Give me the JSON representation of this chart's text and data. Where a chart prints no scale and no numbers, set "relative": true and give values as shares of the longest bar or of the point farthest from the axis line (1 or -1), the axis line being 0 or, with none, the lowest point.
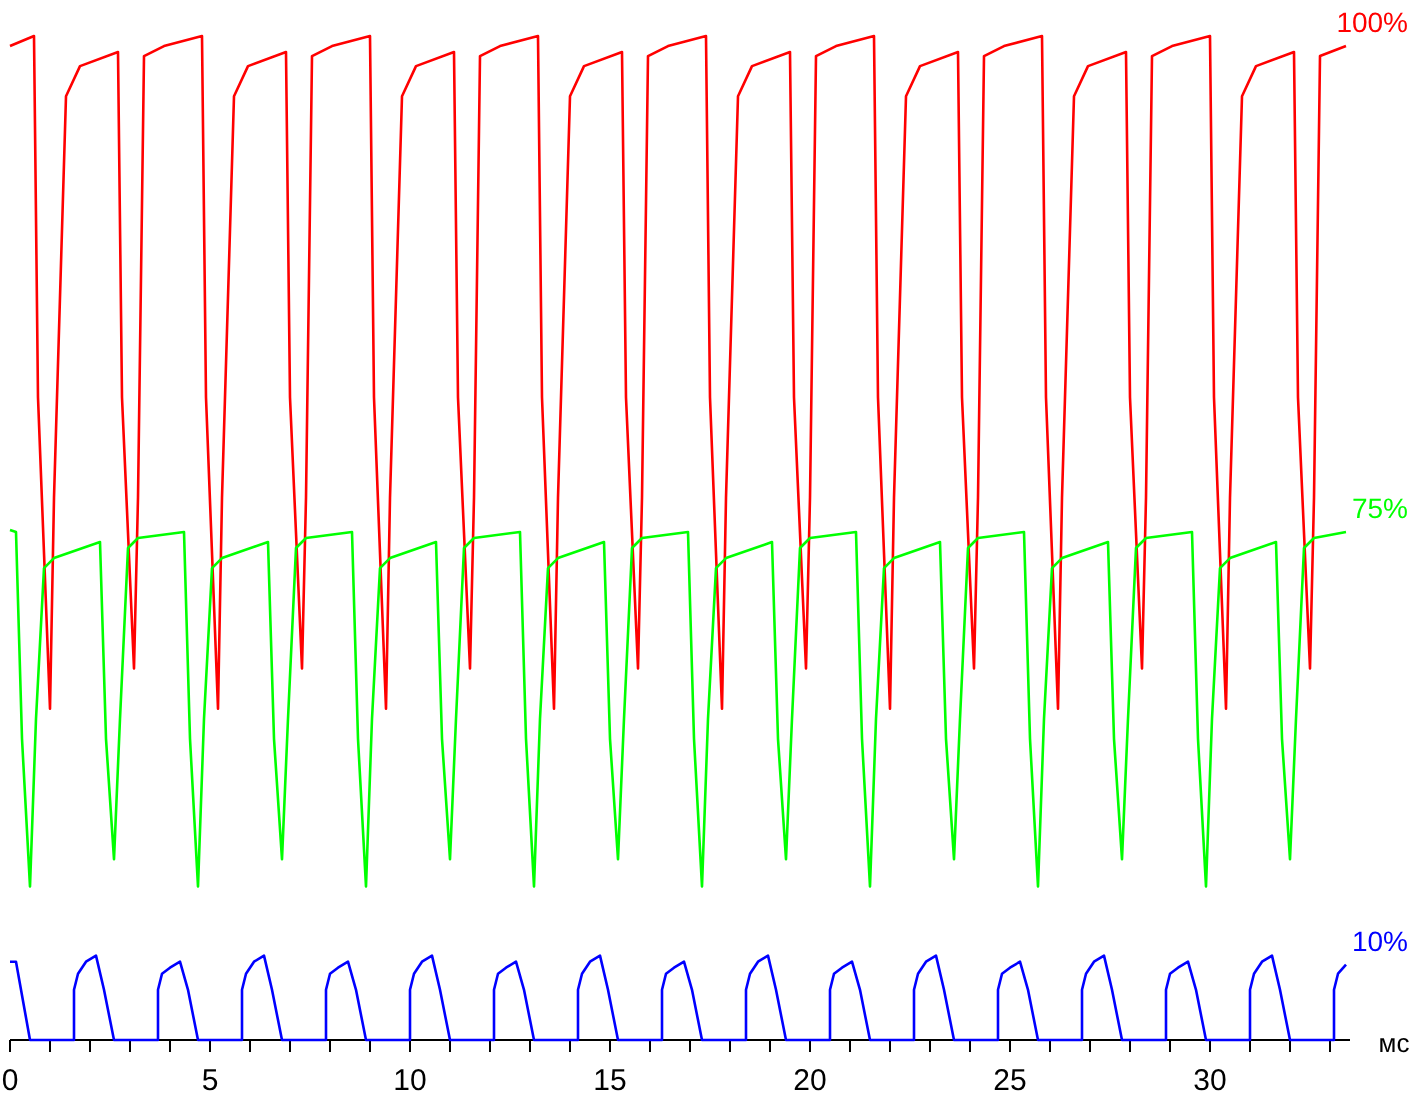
{
  "chart_data": {
    "type": "line",
    "relative": true,
    "xlabel": "мс",
    "xlim": [
      0,
      33.5
    ],
    "xticks": [
      0,
      {
        "value": 1,
        "label": null
      },
      {
        "value": 2,
        "label": null
      },
      {
        "value": 3,
        "label": null
      },
      {
        "value": 4,
        "label": null
      },
      5,
      {
        "value": 6,
        "label": null
      },
      {
        "value": 7,
        "label": null
      },
      {
        "value": 8,
        "label": null
      },
      {
        "value": 9,
        "label": null
      },
      10,
      {
        "value": 11,
        "label": null
      },
      {
        "value": 12,
        "label": null
      },
      {
        "value": 13,
        "label": null
      },
      {
        "value": 14,
        "label": null
      },
      15,
      {
        "value": 16,
        "label": null
      },
      {
        "value": 17,
        "label": null
      },
      {
        "value": 18,
        "label": null
      },
      {
        "value": 19,
        "label": null
      },
      20,
      {
        "value": 21,
        "label": null
      },
      {
        "value": 22,
        "label": null
      },
      {
        "value": 23,
        "label": null
      },
      {
        "value": 24,
        "label": null
      },
      25,
      {
        "value": 26,
        "label": null
      },
      {
        "value": 27,
        "label": null
      },
      {
        "value": 28,
        "label": null
      },
      {
        "value": 29,
        "label": null
      },
      30,
      {
        "value": 31,
        "label": null
      },
      {
        "value": 32,
        "label": null
      },
      {
        "value": 33,
        "label": null
      }
    ],
    "grid": false,
    "marker": "none",
    "line_style": "solid",
    "series": [
      {
        "name": "100%",
        "color": "#ff0000",
        "x": [
          0,
          0.6,
          0.7,
          1.0,
          1.1,
          1.4,
          1.75,
          2.7,
          2.8,
          3.1,
          3.2,
          3.35,
          3.85,
          4.8,
          4.9,
          5.2,
          5.3,
          5.6,
          5.95,
          6.9,
          7.0,
          7.3,
          7.4,
          7.55,
          8.05,
          9.0,
          9.1,
          9.4,
          9.5,
          9.8,
          10.15,
          11.1,
          11.2,
          11.5,
          11.6,
          11.75,
          12.25,
          13.2,
          13.3,
          13.6,
          13.7,
          14.0,
          14.35,
          15.3,
          15.4,
          15.7,
          15.8,
          15.95,
          16.45,
          17.4,
          17.5,
          17.8,
          17.9,
          18.2,
          18.55,
          19.5,
          19.6,
          19.9,
          20.0,
          20.15,
          20.65,
          21.6,
          21.7,
          22.0,
          22.1,
          22.4,
          22.75,
          23.7,
          23.8,
          24.1,
          24.2,
          24.35,
          24.85,
          25.8,
          25.9,
          26.2,
          26.3,
          26.6,
          26.95,
          27.9,
          28.0,
          28.3,
          28.4,
          28.55,
          29.05,
          30.0,
          30.1,
          30.4,
          30.5,
          30.8,
          31.15,
          32.1,
          32.2,
          32.5,
          32.6,
          32.75,
          33.4
        ],
        "values": [
          0.99,
          1.0,
          0.64,
          0.33,
          0.54,
          0.94,
          0.97,
          0.984,
          0.64,
          0.37,
          0.54,
          0.98,
          0.99,
          1.0,
          0.64,
          0.33,
          0.54,
          0.94,
          0.97,
          0.984,
          0.64,
          0.37,
          0.54,
          0.98,
          0.99,
          1.0,
          0.64,
          0.33,
          0.54,
          0.94,
          0.97,
          0.984,
          0.64,
          0.37,
          0.54,
          0.98,
          0.99,
          1.0,
          0.64,
          0.33,
          0.54,
          0.94,
          0.97,
          0.984,
          0.64,
          0.37,
          0.54,
          0.98,
          0.99,
          1.0,
          0.64,
          0.33,
          0.54,
          0.94,
          0.97,
          0.984,
          0.64,
          0.37,
          0.54,
          0.98,
          0.99,
          1.0,
          0.64,
          0.33,
          0.54,
          0.94,
          0.97,
          0.984,
          0.64,
          0.37,
          0.54,
          0.98,
          0.99,
          1.0,
          0.64,
          0.33,
          0.54,
          0.94,
          0.97,
          0.984,
          0.64,
          0.37,
          0.54,
          0.98,
          0.99,
          1.0,
          0.64,
          0.33,
          0.54,
          0.94,
          0.97,
          0.984,
          0.64,
          0.37,
          0.54,
          0.98,
          0.99
        ]
      },
      {
        "name": "75%",
        "color": "#00ff00",
        "x": [
          0,
          0.15,
          0.3,
          0.5,
          0.65,
          0.85,
          1.1,
          2.25,
          2.4,
          2.6,
          2.75,
          2.95,
          3.2,
          4.35,
          4.5,
          4.7,
          4.85,
          5.05,
          5.3,
          6.45,
          6.6,
          6.8,
          6.95,
          7.15,
          7.4,
          8.55,
          8.7,
          8.9,
          9.05,
          9.25,
          9.5,
          10.65,
          10.8,
          11.0,
          11.15,
          11.35,
          11.6,
          12.75,
          12.9,
          13.1,
          13.25,
          13.45,
          13.7,
          14.85,
          15.0,
          15.2,
          15.35,
          15.55,
          15.8,
          16.95,
          17.1,
          17.3,
          17.45,
          17.65,
          17.9,
          19.05,
          19.2,
          19.4,
          19.55,
          19.75,
          20.0,
          21.15,
          21.3,
          21.5,
          21.65,
          21.85,
          22.1,
          23.25,
          23.4,
          23.6,
          23.75,
          23.95,
          24.2,
          25.35,
          25.5,
          25.7,
          25.85,
          26.05,
          26.3,
          27.45,
          27.6,
          27.8,
          27.95,
          28.15,
          28.4,
          29.55,
          29.7,
          29.9,
          30.05,
          30.25,
          30.5,
          31.65,
          31.8,
          32.0,
          32.15,
          32.35,
          32.6,
          33.4
        ],
        "values": [
          0.508,
          0.506,
          0.3,
          0.153,
          0.32,
          0.47,
          0.48,
          0.496,
          0.3,
          0.18,
          0.32,
          0.49,
          0.5,
          0.506,
          0.3,
          0.153,
          0.32,
          0.47,
          0.48,
          0.496,
          0.3,
          0.18,
          0.32,
          0.49,
          0.5,
          0.506,
          0.3,
          0.153,
          0.32,
          0.47,
          0.48,
          0.496,
          0.3,
          0.18,
          0.32,
          0.49,
          0.5,
          0.506,
          0.3,
          0.153,
          0.32,
          0.47,
          0.48,
          0.496,
          0.3,
          0.18,
          0.32,
          0.49,
          0.5,
          0.506,
          0.3,
          0.153,
          0.32,
          0.47,
          0.48,
          0.496,
          0.3,
          0.18,
          0.32,
          0.49,
          0.5,
          0.506,
          0.3,
          0.153,
          0.32,
          0.47,
          0.48,
          0.496,
          0.3,
          0.18,
          0.32,
          0.49,
          0.5,
          0.506,
          0.3,
          0.153,
          0.32,
          0.47,
          0.48,
          0.496,
          0.3,
          0.18,
          0.32,
          0.49,
          0.5,
          0.506,
          0.3,
          0.153,
          0.32,
          0.47,
          0.48,
          0.496,
          0.3,
          0.18,
          0.32,
          0.49,
          0.5,
          0.506
        ]
      },
      {
        "name": "10%",
        "color": "#0000ff",
        "x": [
          0,
          0.15,
          0.5,
          1.6,
          1.6,
          1.7,
          1.9,
          2.15,
          2.35,
          2.6,
          3.7,
          3.7,
          3.8,
          4.0,
          4.25,
          4.45,
          4.7,
          5.8,
          5.8,
          5.9,
          6.1,
          6.35,
          6.55,
          6.8,
          7.9,
          7.9,
          8.0,
          8.2,
          8.45,
          8.65,
          8.9,
          10.0,
          10.0,
          10.1,
          10.3,
          10.55,
          10.75,
          11.0,
          12.1,
          12.1,
          12.2,
          12.4,
          12.65,
          12.85,
          13.1,
          14.2,
          14.2,
          14.3,
          14.5,
          14.75,
          14.95,
          15.2,
          16.3,
          16.3,
          16.4,
          16.6,
          16.85,
          17.05,
          17.3,
          18.4,
          18.4,
          18.5,
          18.7,
          18.95,
          19.15,
          19.4,
          20.5,
          20.5,
          20.6,
          20.8,
          21.05,
          21.25,
          21.5,
          22.6,
          22.6,
          22.7,
          22.9,
          23.15,
          23.35,
          23.6,
          24.7,
          24.7,
          24.8,
          25.0,
          25.25,
          25.45,
          25.7,
          26.8,
          26.8,
          26.9,
          27.1,
          27.35,
          27.55,
          27.8,
          28.9,
          28.9,
          29.0,
          29.2,
          29.45,
          29.65,
          29.9,
          31.0,
          31.0,
          31.1,
          31.3,
          31.55,
          31.75,
          32.0,
          33.1,
          33.1,
          33.2,
          33.4
        ],
        "values": [
          0.078,
          0.078,
          0,
          0,
          0.05,
          0.066,
          0.078,
          0.084,
          0.05,
          0,
          0,
          0.05,
          0.066,
          0.072,
          0.078,
          0.05,
          0,
          0,
          0.05,
          0.066,
          0.078,
          0.084,
          0.05,
          0,
          0,
          0.05,
          0.066,
          0.072,
          0.078,
          0.05,
          0,
          0,
          0.05,
          0.066,
          0.078,
          0.084,
          0.05,
          0,
          0,
          0.05,
          0.066,
          0.072,
          0.078,
          0.05,
          0,
          0,
          0.05,
          0.066,
          0.078,
          0.084,
          0.05,
          0,
          0,
          0.05,
          0.066,
          0.072,
          0.078,
          0.05,
          0,
          0,
          0.05,
          0.066,
          0.078,
          0.084,
          0.05,
          0,
          0,
          0.05,
          0.066,
          0.072,
          0.078,
          0.05,
          0,
          0,
          0.05,
          0.066,
          0.078,
          0.084,
          0.05,
          0,
          0,
          0.05,
          0.066,
          0.072,
          0.078,
          0.05,
          0,
          0,
          0.05,
          0.066,
          0.078,
          0.084,
          0.05,
          0,
          0,
          0.05,
          0.066,
          0.072,
          0.078,
          0.05,
          0,
          0,
          0.05,
          0.066,
          0.078,
          0.084,
          0.05,
          0,
          0,
          0.05,
          0.066,
          0.075
        ]
      }
    ]
  }
}
